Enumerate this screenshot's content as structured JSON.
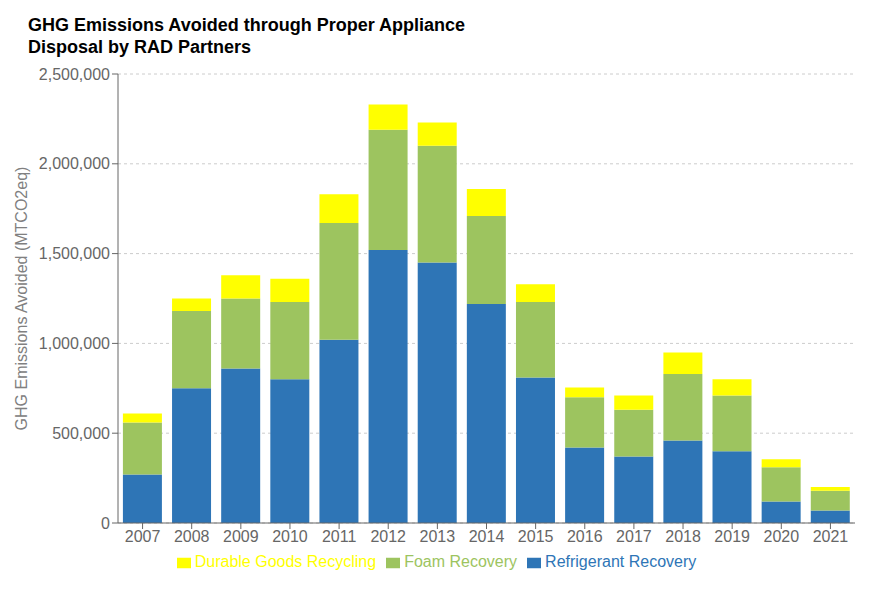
{
  "chart_data": {
    "type": "bar",
    "title": "GHG Emissions Avoided through Proper Appliance\nDisposal by RAD Partners",
    "ylabel": "GHG Emissions Avoided (MTCO2eq)",
    "categories": [
      "2007",
      "2008",
      "2009",
      "2010",
      "2011",
      "2012",
      "2013",
      "2014",
      "2015",
      "2016",
      "2017",
      "2018",
      "2019",
      "2020",
      "2021"
    ],
    "series": [
      {
        "name": "Refrigerant Recovery",
        "color": "#2E75B6",
        "values": [
          270000,
          750000,
          860000,
          800000,
          1020000,
          1520000,
          1450000,
          1220000,
          810000,
          420000,
          370000,
          460000,
          400000,
          120000,
          70000
        ]
      },
      {
        "name": "Foam Recovery",
        "color": "#9DC45F",
        "values": [
          290000,
          430000,
          390000,
          430000,
          650000,
          670000,
          650000,
          490000,
          420000,
          280000,
          260000,
          370000,
          310000,
          190000,
          110000
        ]
      },
      {
        "name": "Durable Goods Recycling",
        "color": "#FFFF00",
        "values": [
          50000,
          70000,
          130000,
          130000,
          160000,
          140000,
          130000,
          150000,
          100000,
          55000,
          80000,
          120000,
          90000,
          45000,
          20000
        ]
      }
    ],
    "ylim": [
      0,
      2500000
    ],
    "yticks": [
      0,
      {
        "value": 500000,
        "label": "500,000"
      },
      {
        "value": 1000000,
        "label": "1,000,000"
      },
      {
        "value": 1500000,
        "label": "1,500,000"
      },
      {
        "value": 2000000,
        "label": "2,000,000"
      },
      {
        "value": 2500000,
        "label": "2,500,000"
      }
    ],
    "stacked": true,
    "grid": true,
    "legend": "bottom"
  }
}
